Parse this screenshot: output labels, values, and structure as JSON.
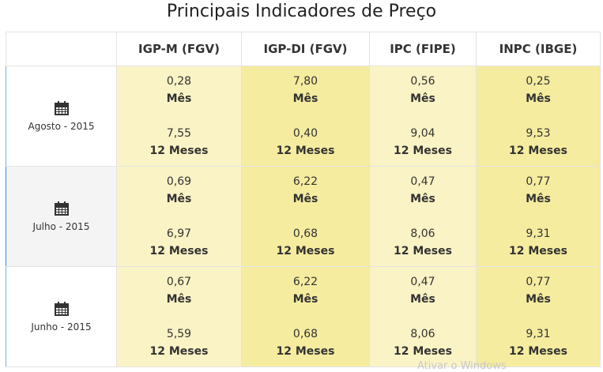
{
  "title": "Principais Indicadores de Preço",
  "columns": [
    "IGP-M (FGV)",
    "IGP-DI (FGV)",
    "IPC (FIPE)",
    "INPC (IBGE)"
  ],
  "month_label": "Mês",
  "year_label": "12 Meses",
  "rows": [
    {
      "period": "Agosto - 2015",
      "values": [
        {
          "month": "0,28",
          "year": "7,55"
        },
        {
          "month": "7,80",
          "year": "0,40"
        },
        {
          "month": "0,56",
          "year": "9,04"
        },
        {
          "month": "0,25",
          "year": "9,53"
        }
      ]
    },
    {
      "period": "Julho - 2015",
      "values": [
        {
          "month": "0,69",
          "year": "6,97"
        },
        {
          "month": "6,22",
          "year": "0,68"
        },
        {
          "month": "0,47",
          "year": "8,06"
        },
        {
          "month": "0,77",
          "year": "9,31"
        }
      ]
    },
    {
      "period": "Junho - 2015",
      "values": [
        {
          "month": "0,67",
          "year": "5,59"
        },
        {
          "month": "6,22",
          "year": "0,68"
        },
        {
          "month": "0,47",
          "year": "8,06"
        },
        {
          "month": "0,77",
          "year": "9,31"
        }
      ]
    }
  ],
  "watermark": "Ativar o Windows",
  "icon": "calendar-icon"
}
